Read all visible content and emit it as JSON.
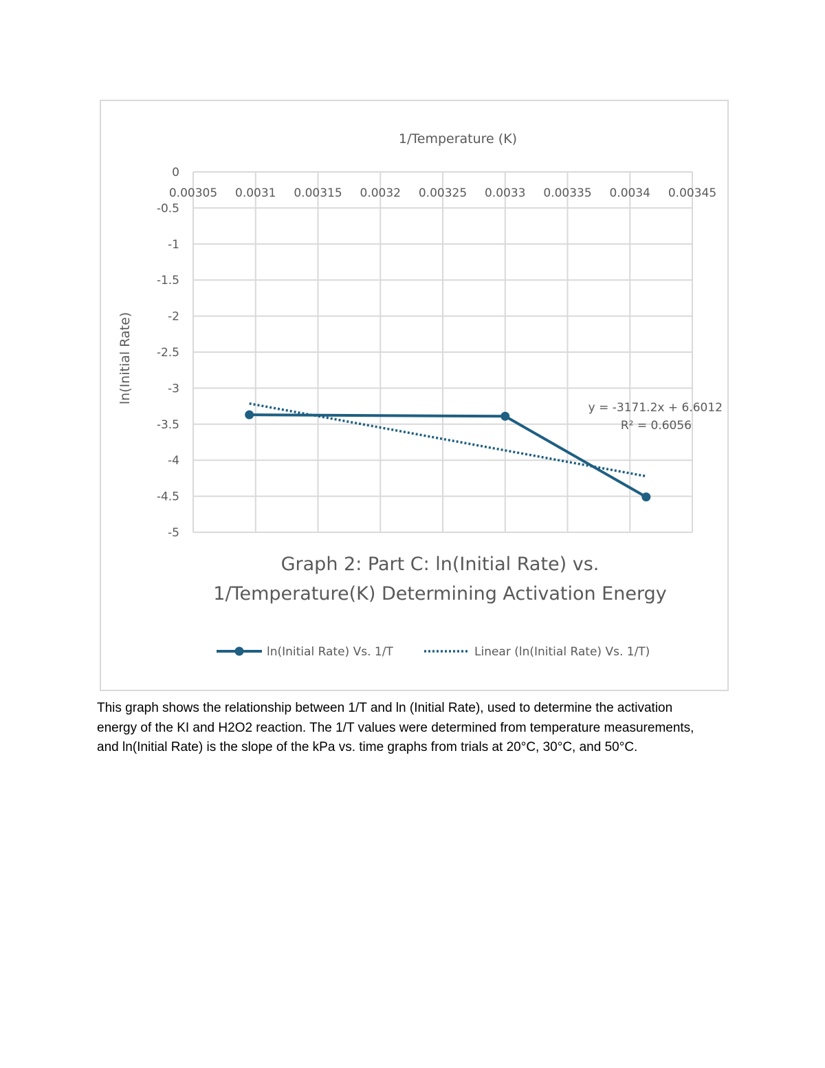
{
  "chart_data": {
    "type": "line",
    "title": "Graph 2: Part C: ln(Initial Rate) vs. 1/Temperature(K) Determining Activation Energy",
    "title_lines": [
      "Graph 2: Part C: ln(Initial Rate) vs.",
      "1/Temperature(K) Determining Activation Energy"
    ],
    "xlabel": "1/Temperature (K)",
    "ylabel": "ln(Initial Rate)",
    "xlim": [
      0.00305,
      0.00345
    ],
    "ylim": [
      -5,
      0
    ],
    "x_ticks": [
      0.00305,
      0.0031,
      0.00315,
      0.0032,
      0.00325,
      0.0033,
      0.00335,
      0.0034,
      0.00345
    ],
    "x_tick_labels": [
      "0.00305",
      "0.0031",
      "0.00315",
      "0.0032",
      "0.00325",
      "0.0033",
      "0.00335",
      "0.0034",
      "0.00345"
    ],
    "y_ticks": [
      0,
      -0.5,
      -1,
      -1.5,
      -2,
      -2.5,
      -3,
      -3.5,
      -4,
      -4.5,
      -5
    ],
    "y_tick_labels": [
      "0",
      "-0.5",
      "-1",
      "-1.5",
      "-2",
      "-2.5",
      "-3",
      "-3.5",
      "-4",
      "-4.5",
      "-5"
    ],
    "x_axis_position": "top",
    "grid": true,
    "legend_position": "bottom",
    "series": [
      {
        "name": "ln(Initial Rate) Vs. 1/T",
        "x": [
          0.003095,
          0.0033,
          0.003413
        ],
        "y": [
          -3.37,
          -3.39,
          -4.51
        ],
        "color": "#1f5f82",
        "style": "solid-with-markers"
      }
    ],
    "trendline": {
      "name": "Linear (ln(Initial Rate) Vs. 1/T)",
      "slope": -3171.2,
      "intercept": 6.6012,
      "equation": "y = -3171.2x + 6.6012",
      "r2_label": "R² = 0.6056",
      "color": "#1f5f82",
      "style": "dotted"
    }
  },
  "caption": "This graph shows the relationship between 1/T and ln (Initial Rate), used to determine the activation energy of the KI and H2O2 reaction. The 1/T values were determined from temperature measurements, and ln(Initial Rate) is the slope of the kPa vs. time graphs from trials at 20°C, 30°C, and 50°C."
}
